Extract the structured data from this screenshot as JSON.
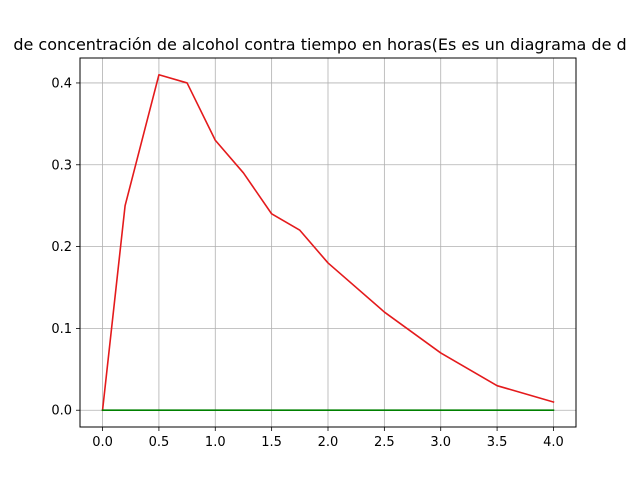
{
  "chart_data": {
    "type": "line",
    "title": "de concentración de alcohol contra tiempo en horas(Es es un diagrama de d",
    "xlabel": "",
    "ylabel": "",
    "xlim": [
      -0.2,
      4.2
    ],
    "ylim": [
      -0.0205,
      0.4305
    ],
    "grid": true,
    "x_ticks": [
      0.0,
      0.5,
      1.0,
      1.5,
      2.0,
      2.5,
      3.0,
      3.5,
      4.0
    ],
    "x_tick_labels": [
      "0.0",
      "0.5",
      "1.0",
      "1.5",
      "2.0",
      "2.5",
      "3.0",
      "3.5",
      "4.0"
    ],
    "y_ticks": [
      0.0,
      0.1,
      0.2,
      0.3,
      0.4
    ],
    "y_tick_labels": [
      "0.0",
      "0.1",
      "0.2",
      "0.3",
      "0.4"
    ],
    "series": [
      {
        "color": "#e41a1c",
        "x": [
          0.0,
          0.2,
          0.5,
          0.75,
          1.0,
          1.25,
          1.5,
          1.75,
          2.0,
          2.5,
          3.0,
          3.5,
          4.0
        ],
        "y": [
          0.0,
          0.25,
          0.41,
          0.4,
          0.33,
          0.29,
          0.24,
          0.22,
          0.18,
          0.12,
          0.07,
          0.03,
          0.01
        ]
      },
      {
        "color": "#008000",
        "x": [
          0.0,
          0.2,
          0.5,
          0.75,
          1.0,
          1.25,
          1.5,
          1.75,
          2.0,
          2.5,
          3.0,
          3.5,
          4.0
        ],
        "y": [
          0.0,
          0.0,
          0.0,
          0.0,
          0.0,
          0.0,
          0.0,
          0.0,
          0.0,
          0.0,
          0.0,
          0.0,
          0.0
        ]
      }
    ]
  }
}
